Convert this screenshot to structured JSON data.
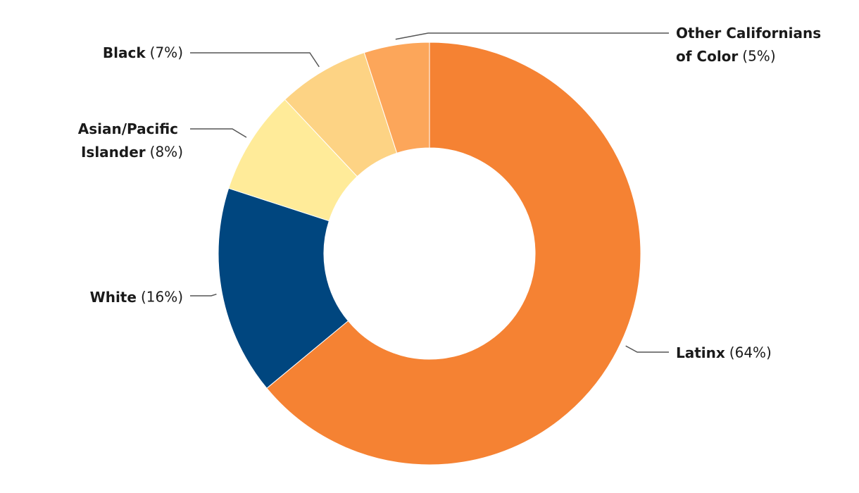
{
  "chart_data": {
    "type": "donut",
    "categories": [
      "Latinx",
      "White",
      "Asian/Pacific Islander",
      "Black",
      "Other Californians of Color"
    ],
    "values": [
      64,
      16,
      8,
      7,
      5
    ],
    "value_labels": [
      "(64%)",
      "(16%)",
      "(8%)",
      "(7%)",
      "(5%)"
    ],
    "colors": [
      "#f58233",
      "#00467f",
      "#ffeb99",
      "#fdd384",
      "#fca65a"
    ]
  }
}
